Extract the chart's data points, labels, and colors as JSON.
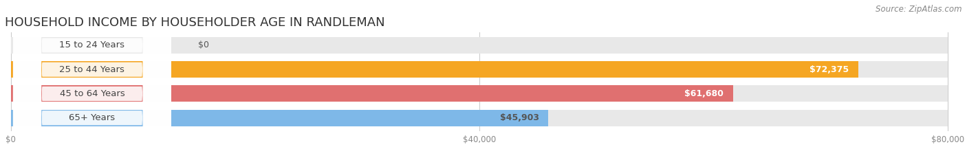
{
  "title": "HOUSEHOLD INCOME BY HOUSEHOLDER AGE IN RANDLEMAN",
  "source": "Source: ZipAtlas.com",
  "categories": [
    "15 to 24 Years",
    "25 to 44 Years",
    "45 to 64 Years",
    "65+ Years"
  ],
  "values": [
    0,
    72375,
    61680,
    45903
  ],
  "labels": [
    "$0",
    "$72,375",
    "$61,680",
    "$45,903"
  ],
  "bar_colors": [
    "#f48fb1",
    "#f5a623",
    "#e07070",
    "#7eb8e8"
  ],
  "label_colors": [
    "#555555",
    "#ffffff",
    "#ffffff",
    "#555555"
  ],
  "bar_bg_color": "#e8e8e8",
  "xlim": [
    0,
    80000
  ],
  "xticklabels": [
    "$0",
    "$40,000",
    "$80,000"
  ],
  "xtick_values": [
    0,
    40000,
    80000
  ],
  "title_fontsize": 13,
  "cat_fontsize": 9.5,
  "val_fontsize": 9,
  "source_fontsize": 8.5,
  "background_color": "#ffffff",
  "grid_color": "#cccccc",
  "cat_label_color": "#444444",
  "tick_color": "#888888"
}
